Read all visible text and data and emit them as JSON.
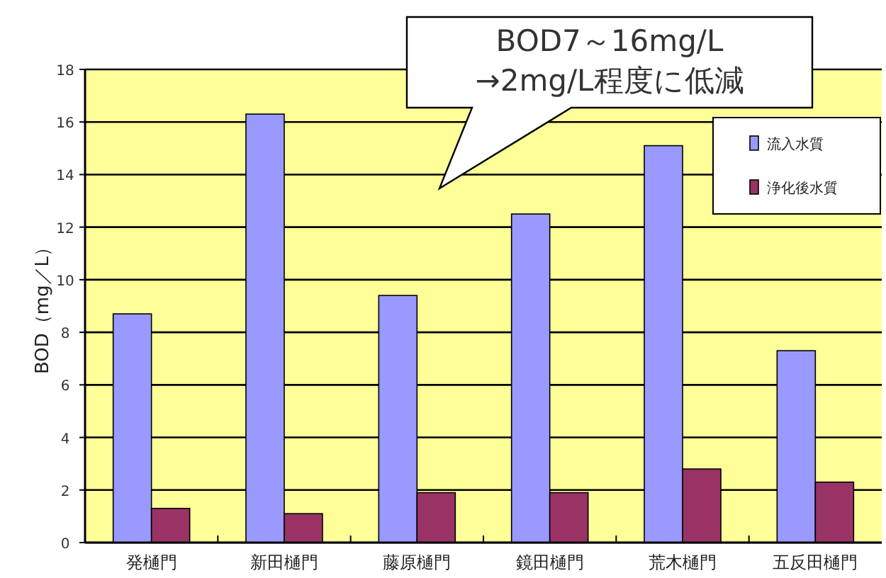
{
  "chart_data": {
    "type": "bar",
    "ylabel": "BOD（mg／L）",
    "categories": [
      "発樋門",
      "新田樋門",
      "藤原樋門",
      "鏡田樋門",
      "荒木樋門",
      "五反田樋門"
    ],
    "series": [
      {
        "name": "流入水質",
        "color": "#9999ff",
        "values": [
          8.7,
          16.3,
          9.4,
          12.5,
          15.1,
          7.3
        ]
      },
      {
        "name": "浄化後水質",
        "color": "#993366",
        "values": [
          1.3,
          1.1,
          1.9,
          1.9,
          2.8,
          2.3
        ]
      }
    ],
    "ylim": [
      0,
      18
    ],
    "yticks": [
      0,
      2,
      4,
      6,
      8,
      10,
      12,
      14,
      16,
      18
    ],
    "grid": "y",
    "legend": "top right",
    "annotations": [
      "BOD7～16mg/L\n→2mg/L程度に低減"
    ]
  }
}
